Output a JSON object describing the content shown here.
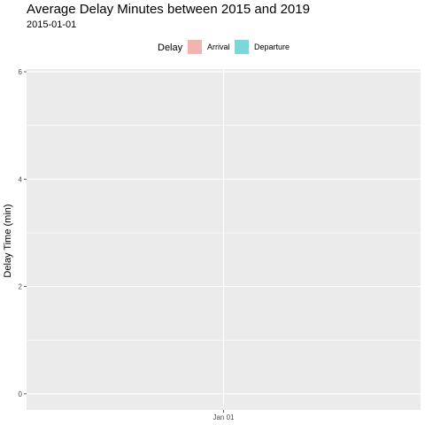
{
  "chart_data": {
    "type": "bar",
    "title": "Average Delay Minutes between 2015 and 2019",
    "subtitle": "2015-01-01",
    "ylabel": "Delay Time (min)",
    "xlabel": "",
    "legend": {
      "title": "Delay",
      "position": "top",
      "entries": [
        {
          "label": "Arrival",
          "color": "#f4b3ae"
        },
        {
          "label": "Departure",
          "color": "#7ad8d8"
        }
      ]
    },
    "categories": [
      "Jan 01"
    ],
    "series": [
      {
        "name": "Arrival",
        "values": [
          0
        ]
      },
      {
        "name": "Departure",
        "values": [
          0
        ]
      }
    ],
    "y_ticks": [
      0,
      2,
      4,
      6
    ],
    "x_ticks": [
      "Jan 01"
    ],
    "ylim": [
      -0.3,
      6.05
    ],
    "grid": true,
    "panel_background": "#ebebeb",
    "grid_color": "#ffffff"
  }
}
